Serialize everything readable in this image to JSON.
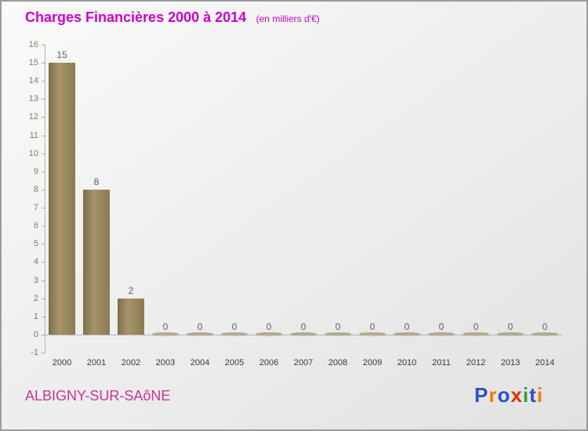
{
  "header": {
    "title": "Charges Financières 2000 à 2014",
    "subtitle": "(en milliers d'€)"
  },
  "footer": {
    "location": "ALBIGNY-SUR-SAôNE",
    "logo_letters": [
      {
        "ch": "P",
        "color": "#2b50c8"
      },
      {
        "ch": "r",
        "color": "#ff7a00"
      },
      {
        "ch": "o",
        "color": "#2b50c8"
      },
      {
        "ch": "x",
        "color": "#e03000"
      },
      {
        "ch": "i",
        "color": "#2fa12f"
      },
      {
        "ch": "t",
        "color": "#2b50c8"
      },
      {
        "ch": "i",
        "color": "#ff7a00"
      }
    ]
  },
  "colors": {
    "title": "#cc00cc",
    "bar": "#8f7e52",
    "zero_marker": "#b5ab90",
    "y_tick_label": "#8b7b50",
    "x_tick_label": "#3a3a3a",
    "value_label": "#5f5f5f",
    "background": "#efefef",
    "border": "#9c9c9c"
  },
  "chart_data": {
    "type": "bar",
    "title": "Charges Financières 2000 à 2014",
    "subtitle": "(en milliers d'€)",
    "categories": [
      "2000",
      "2001",
      "2002",
      "2003",
      "2004",
      "2005",
      "2006",
      "2007",
      "2008",
      "2009",
      "2010",
      "2011",
      "2012",
      "2013",
      "2014"
    ],
    "values": [
      15,
      8,
      2,
      0,
      0,
      0,
      0,
      0,
      0,
      0,
      0,
      0,
      0,
      0,
      0
    ],
    "xlabel": "",
    "ylabel": "",
    "ylim": [
      -1,
      16
    ],
    "ytick_step": 1,
    "grid": false,
    "legend": false,
    "value_labels_shown": true
  }
}
